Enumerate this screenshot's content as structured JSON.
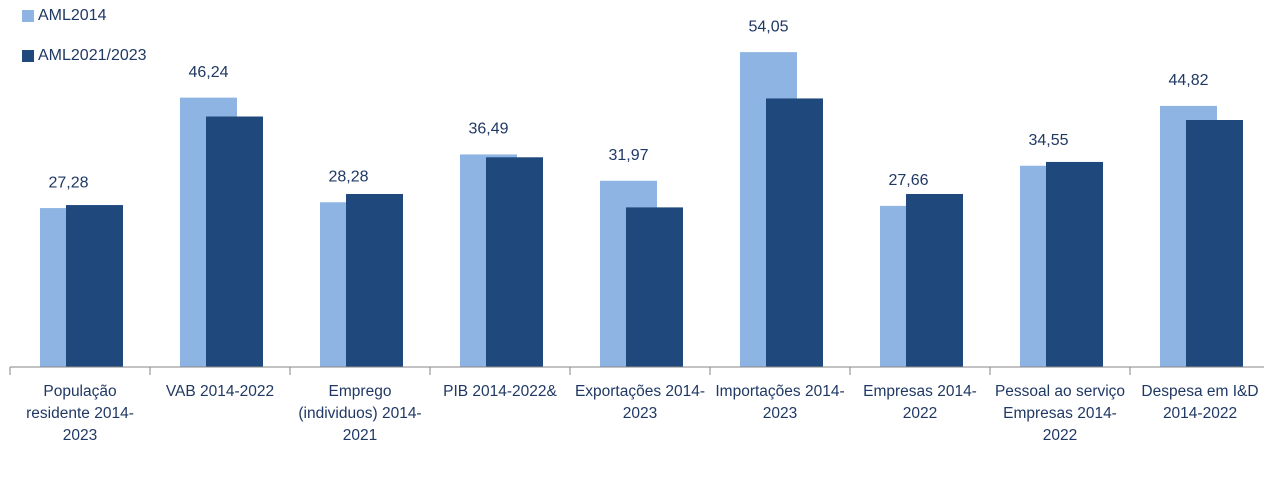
{
  "chart_data": {
    "type": "bar",
    "categories": [
      "População residente 2014-2023",
      "VAB 2014-2022",
      "Emprego (individuos) 2014-2021",
      "PIB 2014-2022&",
      "Exportações 2014-2023",
      "Importações 2014-2023",
      "Empresas 2014-2022",
      "Pessoal ao serviço Empresas 2014-2022",
      "Despesa em I&D 2014-2022"
    ],
    "series": [
      {
        "name": "AML2014",
        "color": "#8eb4e3",
        "values": [
          27.28,
          46.24,
          28.28,
          36.49,
          31.97,
          54.05,
          27.66,
          34.55,
          44.82
        ],
        "value_labels": [
          "27,28",
          "46,24",
          "28,28",
          "36,49",
          "31,97",
          "54,05",
          "27,66",
          "34,55",
          "44,82"
        ]
      },
      {
        "name": "AML2021/2023",
        "color": "#1f497d",
        "values": [
          27.8,
          43.0,
          29.7,
          36.0,
          27.4,
          46.1,
          29.7,
          35.2,
          42.4
        ]
      }
    ],
    "ylim": [
      0,
      63
    ]
  }
}
